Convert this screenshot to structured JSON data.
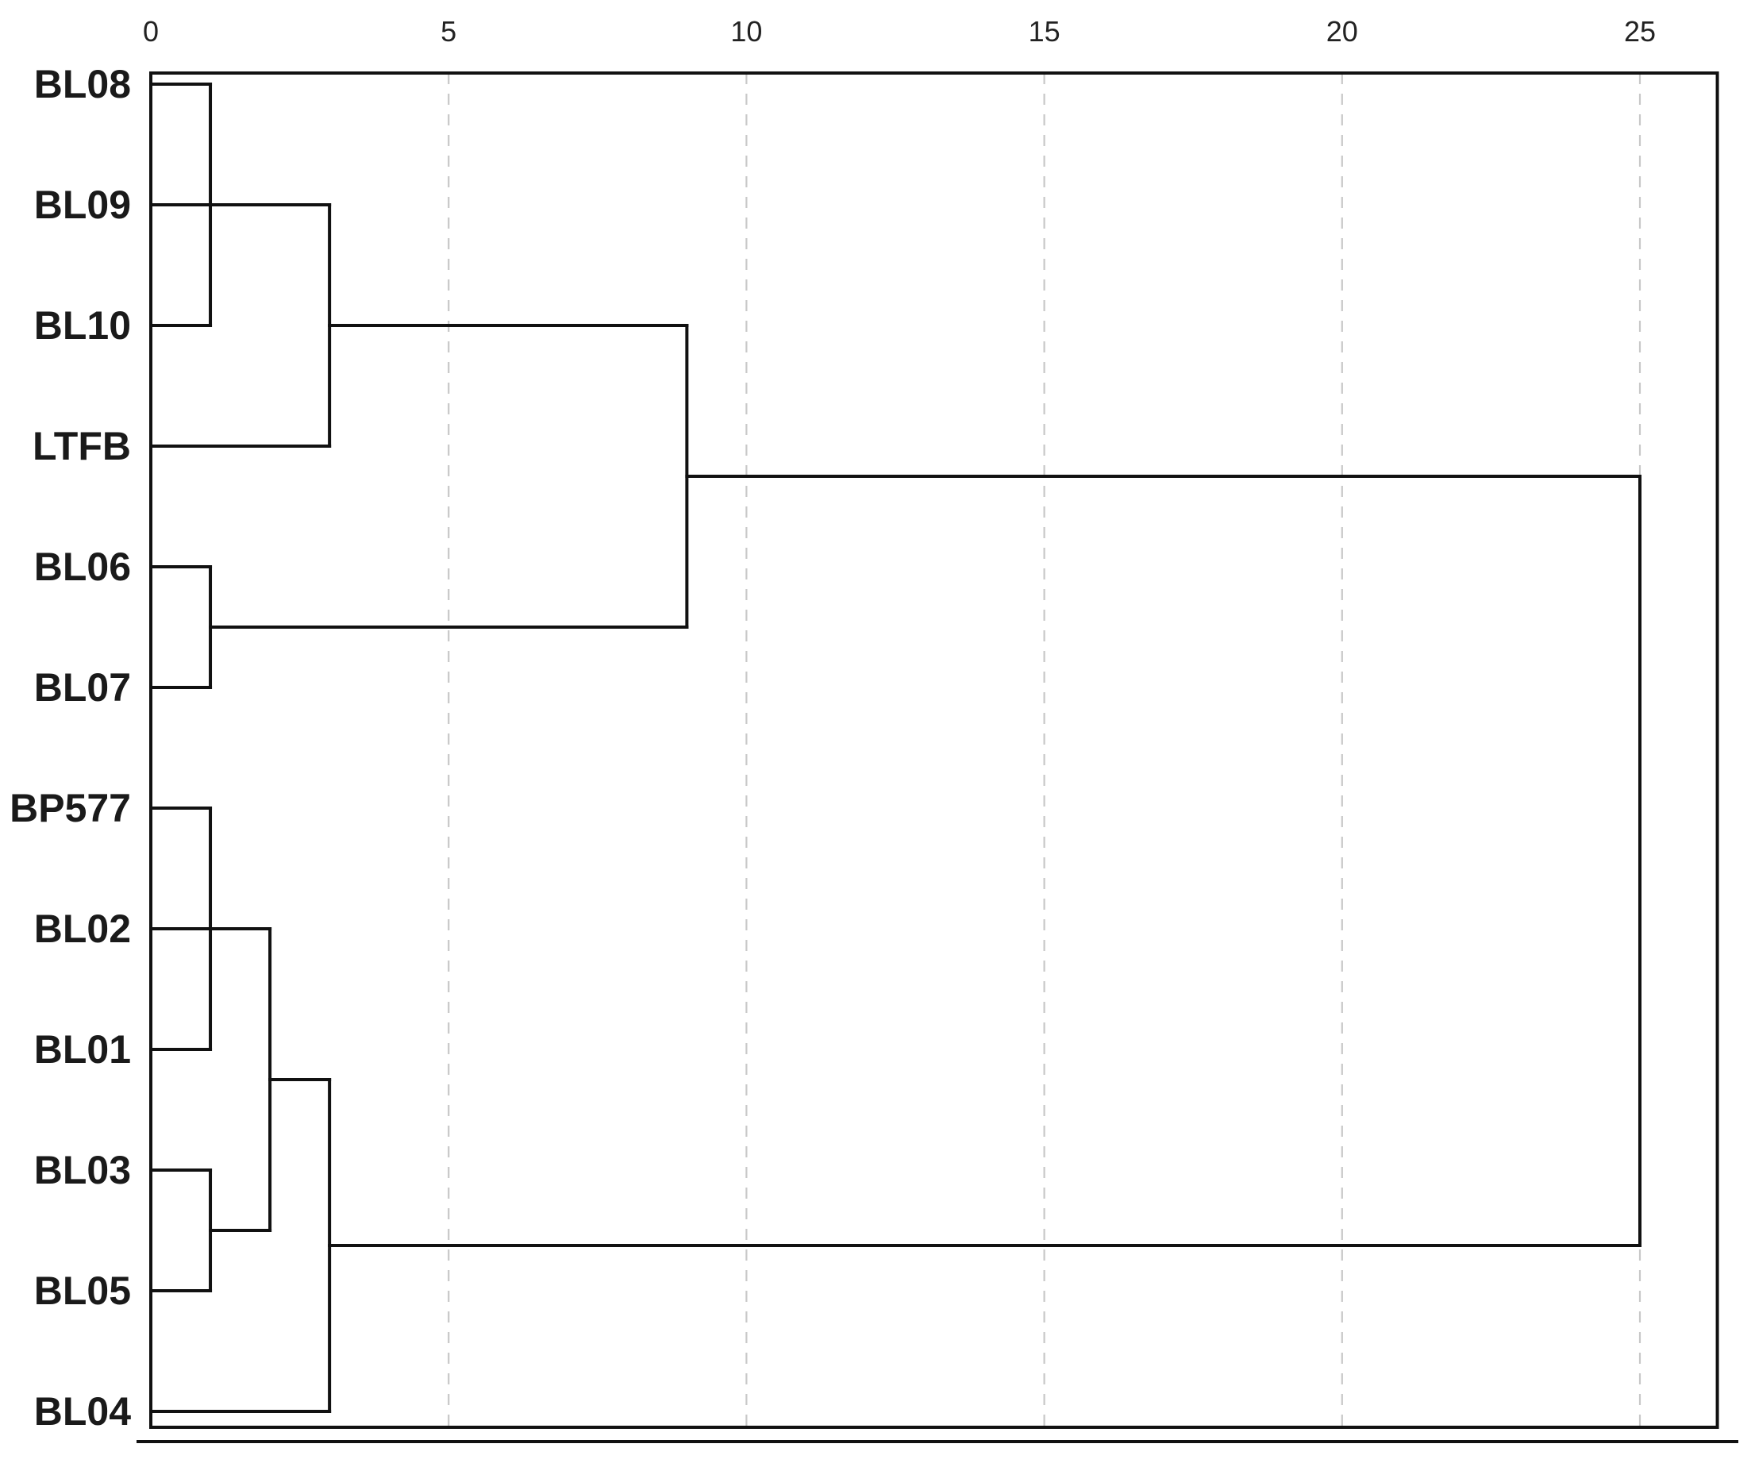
{
  "chart_data": {
    "type": "dendrogram",
    "title": "",
    "xlabel": "",
    "ylabel": "",
    "xlim": [
      0,
      26.3
    ],
    "x_ticks": [
      0,
      5,
      10,
      15,
      20,
      25
    ],
    "x_tick_labels": [
      "0",
      "5",
      "10",
      "15",
      "20",
      "25"
    ],
    "grid": true,
    "leaves": [
      "BL08",
      "BL09",
      "BL10",
      "LTFB",
      "BL06",
      "BL07",
      "BP577",
      "BL02",
      "BL01",
      "BL03",
      "BL05",
      "BL04"
    ],
    "merges": [
      {
        "id": "m1",
        "children": [
          "BL08",
          "BL10"
        ],
        "height": 1
      },
      {
        "id": "m2",
        "children": [
          "BL09",
          "m1"
        ],
        "height": 1
      },
      {
        "id": "m3",
        "children": [
          "m2",
          "LTFB"
        ],
        "height": 3
      },
      {
        "id": "m4",
        "children": [
          "BL06",
          "BL07"
        ],
        "height": 1
      },
      {
        "id": "m5",
        "children": [
          "m3",
          "m4"
        ],
        "height": 9
      },
      {
        "id": "m6",
        "children": [
          "BP577",
          "BL01"
        ],
        "height": 1
      },
      {
        "id": "m7",
        "children": [
          "BL02",
          "m6"
        ],
        "height": 1
      },
      {
        "id": "m8",
        "children": [
          "BL03",
          "BL05"
        ],
        "height": 1
      },
      {
        "id": "m9",
        "children": [
          "m7",
          "m8"
        ],
        "height": 2
      },
      {
        "id": "m10",
        "children": [
          "m9",
          "BL04"
        ],
        "height": 3
      },
      {
        "id": "root",
        "children": [
          "m5",
          "m10"
        ],
        "height": 25
      }
    ]
  }
}
